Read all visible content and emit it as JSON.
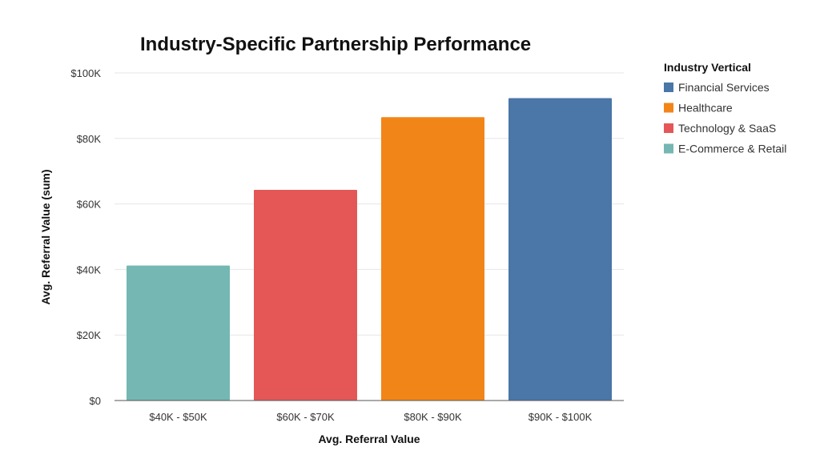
{
  "chart_data": {
    "type": "bar",
    "title": "Industry-Specific Partnership Performance",
    "xlabel": "Avg. Referral Value",
    "ylabel": "Avg. Referral Value (sum)",
    "categories": [
      "$40K - $50K",
      "$60K - $70K",
      "$80K - $90K",
      "$90K - $100K"
    ],
    "values": [
      41200,
      64300,
      86500,
      92300
    ],
    "bar_series": [
      "E-Commerce & Retail",
      "Technology & SaaS",
      "Healthcare",
      "Financial Services"
    ],
    "ylim": [
      0,
      100000
    ],
    "yticks": [
      0,
      20000,
      40000,
      60000,
      80000,
      100000
    ],
    "ytick_labels": [
      "$0",
      "$20K",
      "$40K",
      "$60K",
      "$80K",
      "$100K"
    ],
    "grid": true,
    "legend": {
      "title": "Industry Vertical",
      "position": "right",
      "entries": [
        {
          "name": "Financial Services",
          "color": "#4a76a8"
        },
        {
          "name": "Healthcare",
          "color": "#f28518"
        },
        {
          "name": "Technology & SaaS",
          "color": "#e55757"
        },
        {
          "name": "E-Commerce & Retail",
          "color": "#75b7b2"
        }
      ]
    }
  }
}
